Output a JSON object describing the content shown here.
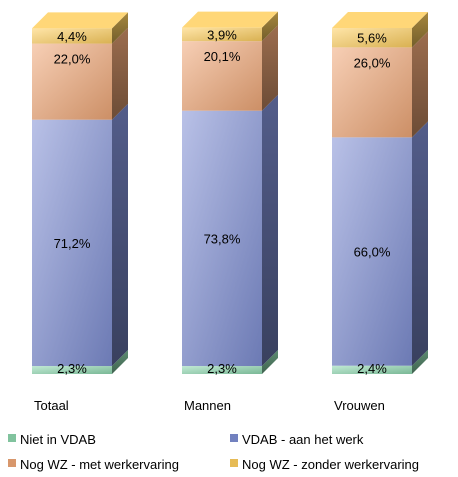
{
  "chart_data": {
    "type": "bar",
    "stacked": true,
    "percent_stacked": true,
    "three_d": true,
    "title": "",
    "xlabel": "",
    "ylabel": "",
    "ylim": [
      0,
      100
    ],
    "grid": false,
    "legend_position": "bottom",
    "categories": [
      "Totaal",
      "Mannen",
      "Vrouwen"
    ],
    "series": [
      {
        "name": "Niet in VDAB",
        "values": [
          2.3,
          2.3,
          2.4
        ],
        "labels": [
          "2,3%",
          "2,3%",
          "2,4%"
        ],
        "color": "#8fd9b0"
      },
      {
        "name": "VDAB - aan het werk",
        "values": [
          71.2,
          73.8,
          66.0
        ],
        "labels": [
          "71,2%",
          "73,8%",
          "66,0%"
        ],
        "color": "#7f8fd4"
      },
      {
        "name": "Nog WZ - met werkervaring",
        "values": [
          22.0,
          20.1,
          26.0
        ],
        "labels": [
          "22,0%",
          "20,1%",
          "26,0%"
        ],
        "color": "#f0a878"
      },
      {
        "name": "Nog WZ - zonder werkervaring",
        "values": [
          4.4,
          3.9,
          5.6
        ],
        "labels": [
          "4,4%",
          "3,9%",
          "5,6%"
        ],
        "color": "#ffd060"
      }
    ]
  }
}
